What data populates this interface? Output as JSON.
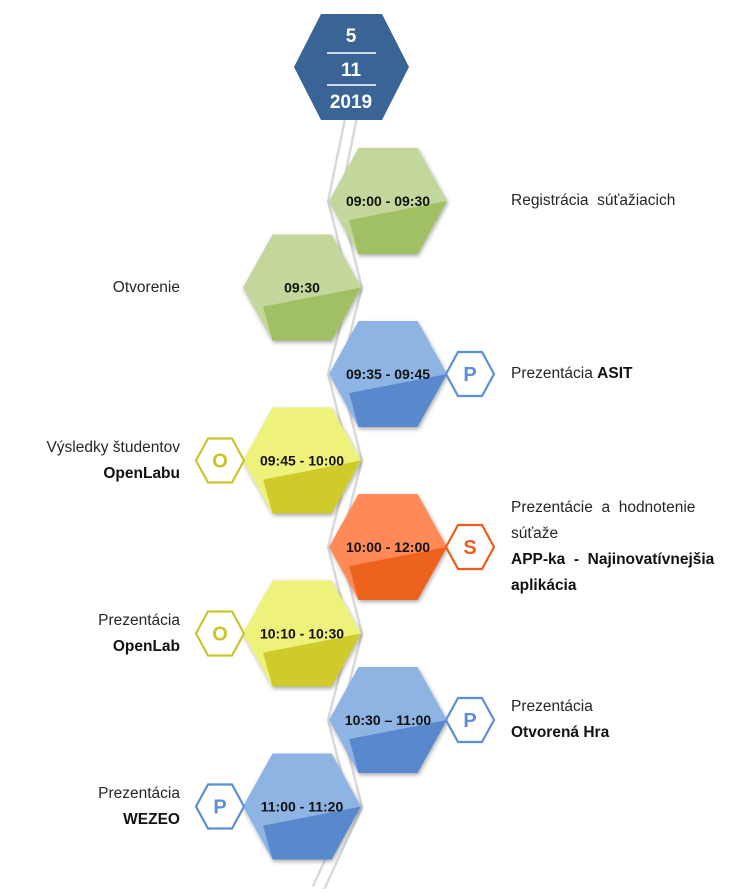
{
  "header": {
    "day": "5",
    "month": "11",
    "year": "2019",
    "color": "#3a6496"
  },
  "colors": {
    "green": "#c3d69b",
    "green_dark": "#9bbb59",
    "blue": "#8eb4e3",
    "blue_dark": "#4f81c8",
    "yellow": "#eef27a",
    "yellow_dark": "#c9c41c",
    "orange": "#ff8a58",
    "orange_dark": "#ea5a12",
    "badge_yellow": "#c8c62a",
    "badge_blue": "#5b8fd6",
    "badge_orange": "#ee5c1c"
  },
  "schedule": [
    {
      "time": "09:00 - 09:30",
      "color": "green",
      "side": "right",
      "badge": "",
      "title_lines": [
        "Registrácia  súťažiacich"
      ],
      "title_inline": "",
      "bold_lines": []
    },
    {
      "time": "09:30",
      "color": "green",
      "side": "left",
      "badge": "",
      "title_lines": [
        "Otvorenie"
      ],
      "title_inline": "",
      "bold_lines": []
    },
    {
      "time": "09:35 - 09:45",
      "color": "blue",
      "side": "right",
      "badge": "P",
      "title_lines": [],
      "title_inline": "Prezentácia ",
      "bold_lines": [
        "ASIT"
      ]
    },
    {
      "time": "09:45 - 10:00",
      "color": "yellow",
      "side": "left",
      "badge": "O",
      "title_lines": [
        "Výsledky študentov"
      ],
      "title_inline": "",
      "bold_lines": [
        "OpenLabu"
      ]
    },
    {
      "time": "10:00 - 12:00",
      "color": "orange",
      "side": "right",
      "badge": "S",
      "title_lines": [
        "Prezentácie  a  hodnotenie",
        "súťaže"
      ],
      "title_inline": "",
      "bold_lines": [
        "APP-ka  -  Najinovatívnejšia",
        "aplikácia"
      ]
    },
    {
      "time": "10:10 - 10:30",
      "color": "yellow",
      "side": "left",
      "badge": "O",
      "title_lines": [
        "Prezentácia"
      ],
      "title_inline": "",
      "bold_lines": [
        "OpenLab"
      ]
    },
    {
      "time": "10:30 – 11:00",
      "color": "blue",
      "side": "right",
      "badge": "P",
      "title_lines": [
        "Prezentácia"
      ],
      "title_inline": "",
      "bold_lines": [
        "Otvorená Hra"
      ]
    },
    {
      "time": "11:00 - 11:20",
      "color": "blue",
      "side": "left",
      "badge": "P",
      "title_lines": [
        "Prezentácia"
      ],
      "title_inline": "",
      "bold_lines": [
        "WEZEO"
      ]
    }
  ]
}
